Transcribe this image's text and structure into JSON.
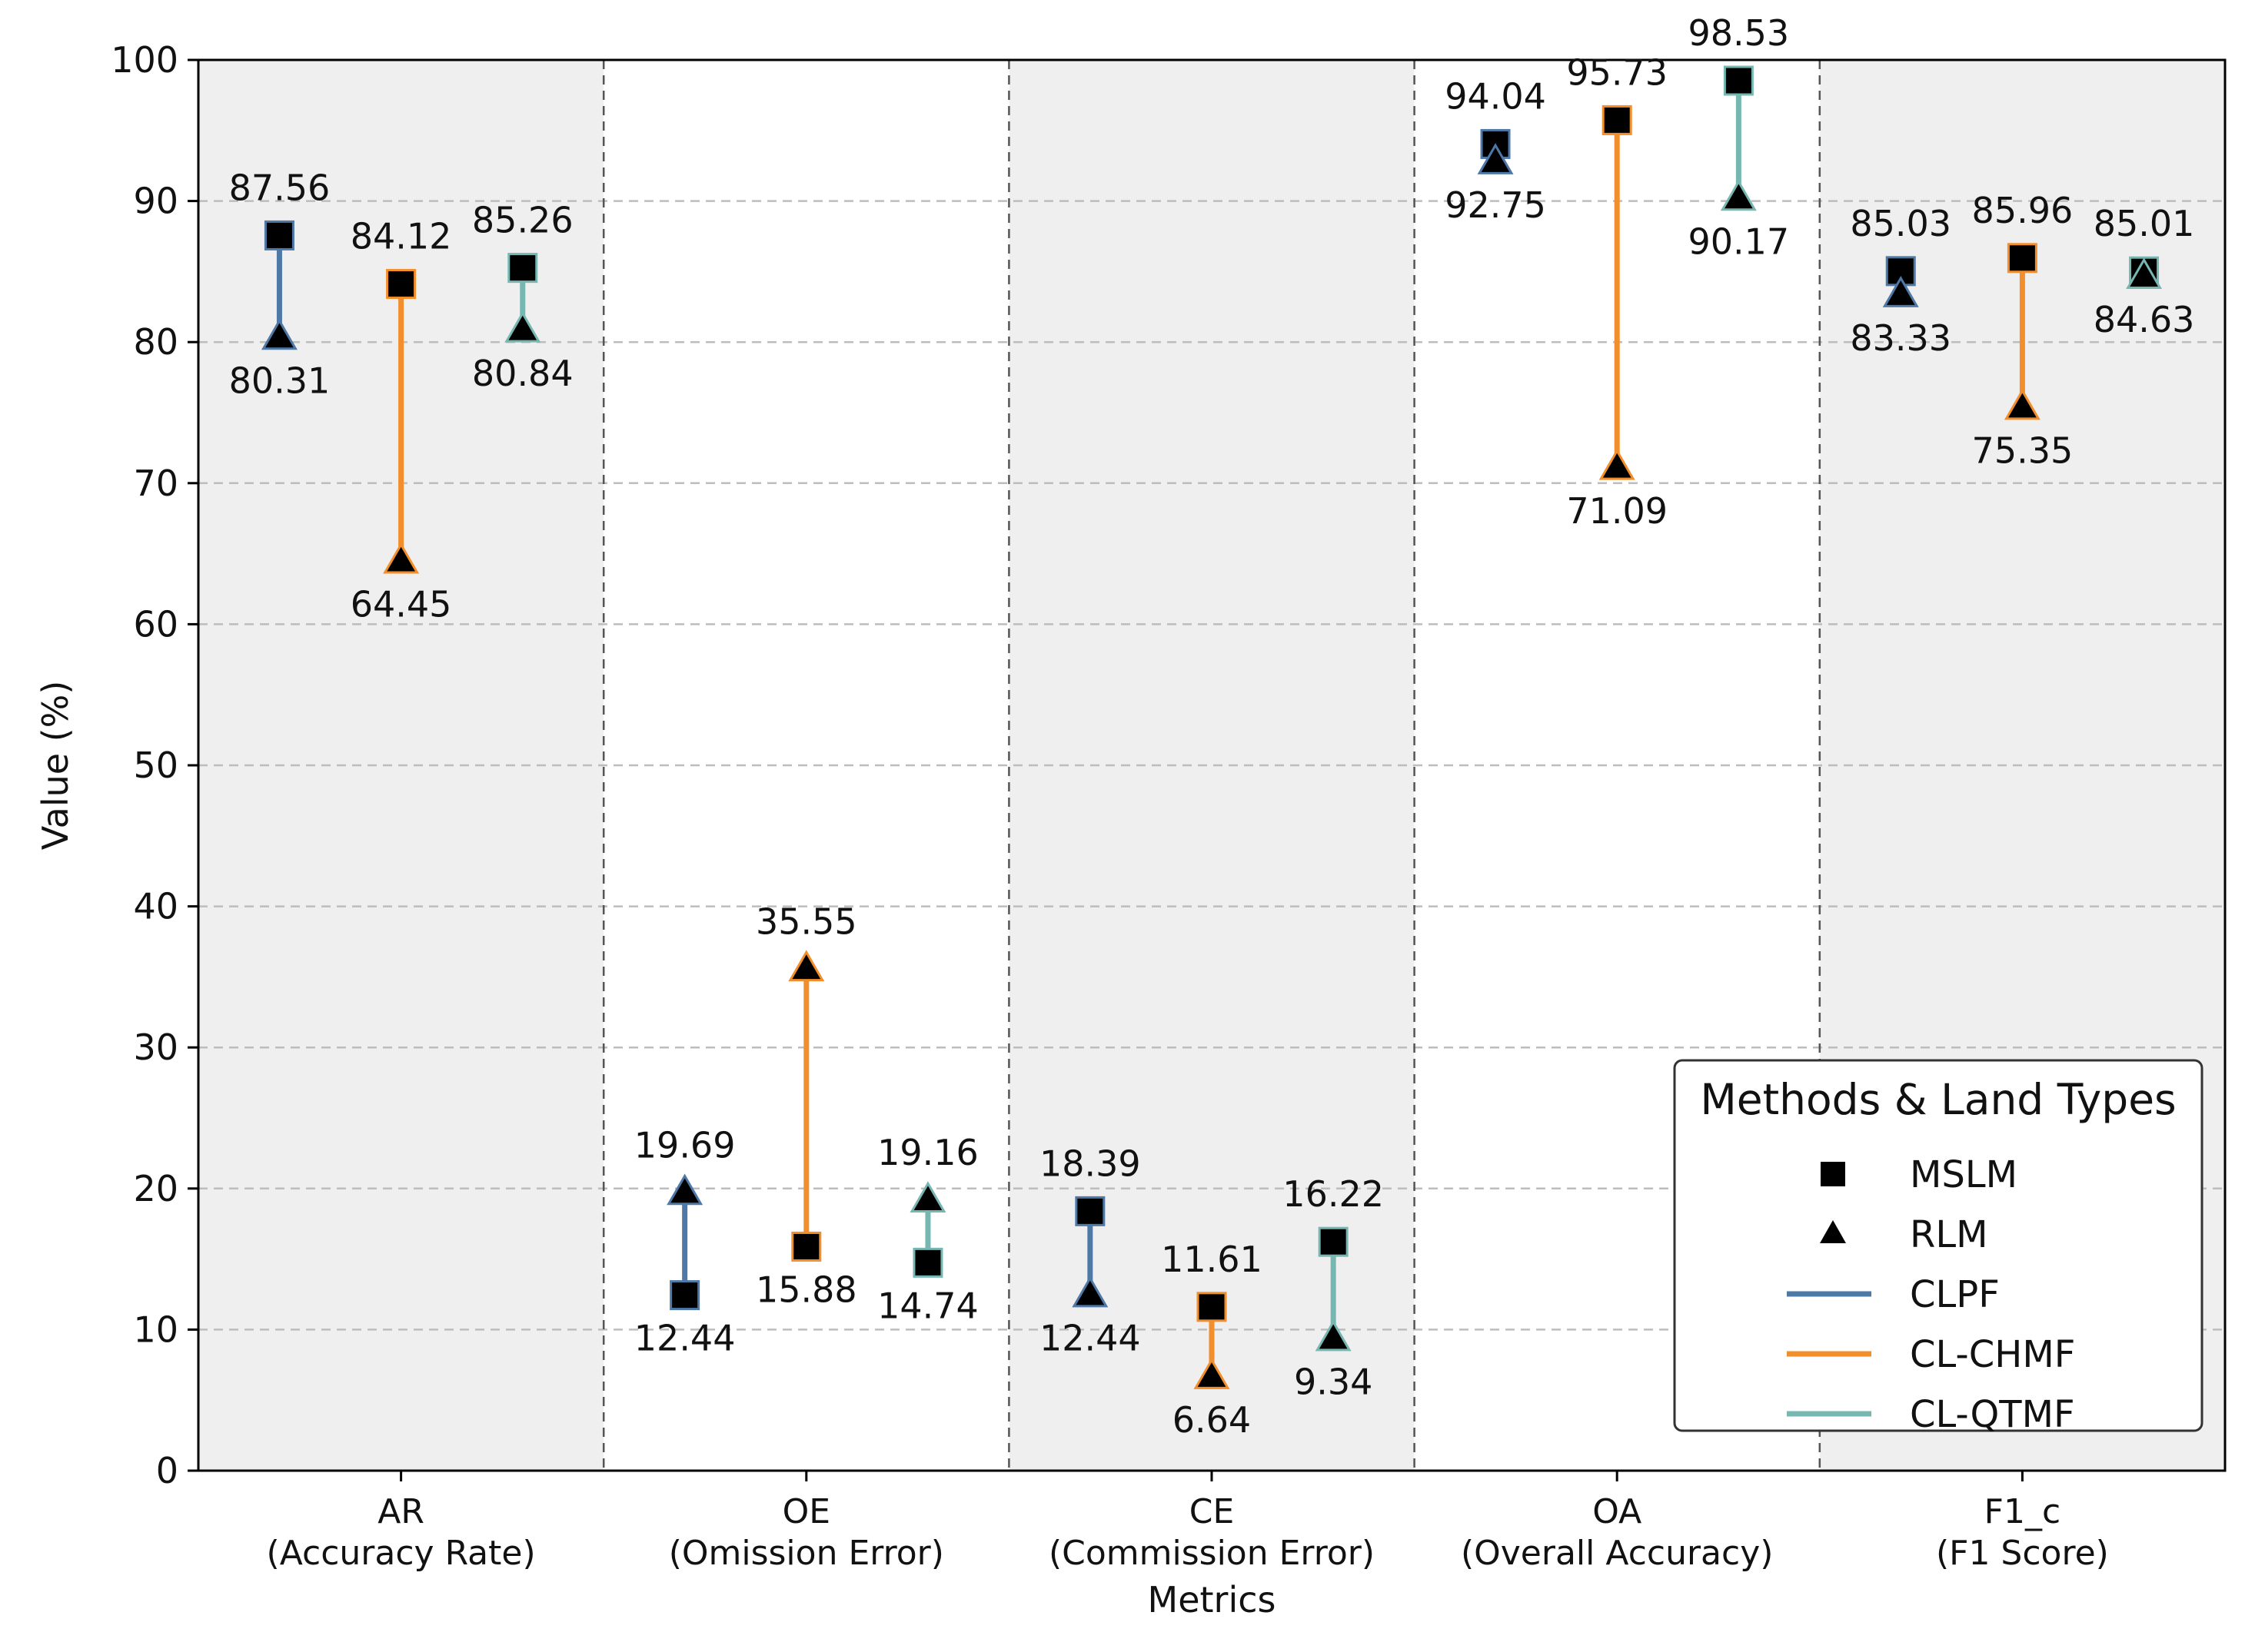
{
  "chart_data": {
    "type": "dumbbell",
    "xlabel": "Metrics",
    "ylabel": "Value (%)",
    "ylim": [
      0,
      100
    ],
    "yticks": [
      0,
      10,
      20,
      30,
      40,
      50,
      60,
      70,
      80,
      90,
      100
    ],
    "grid": true,
    "categories": [
      {
        "code": "AR",
        "desc": "(Accuracy Rate)",
        "shaded": true
      },
      {
        "code": "OE",
        "desc": "(Omission Error)",
        "shaded": false
      },
      {
        "code": "CE",
        "desc": "(Commission Error)",
        "shaded": true
      },
      {
        "code": "OA",
        "desc": "(Overall Accuracy)",
        "shaded": false
      },
      {
        "code": "F1_c",
        "desc": "(F1 Score)",
        "shaded": true
      }
    ],
    "series": [
      {
        "name": "CLPF",
        "color": "#4e79a7",
        "mslm": [
          87.56,
          12.44,
          18.39,
          94.04,
          85.03
        ],
        "rlm": [
          80.31,
          19.69,
          12.44,
          92.75,
          83.33
        ],
        "mslm_labels": [
          "87.56",
          "12.44",
          "18.39",
          "94.04",
          "85.03"
        ],
        "rlm_labels": [
          "80.31",
          "19.69",
          "12.44",
          "92.75",
          "83.33"
        ]
      },
      {
        "name": "CL-CHMF",
        "color": "#f28e2b",
        "mslm": [
          84.12,
          15.88,
          11.61,
          95.73,
          85.96
        ],
        "rlm": [
          64.45,
          35.55,
          6.64,
          71.09,
          75.35
        ],
        "mslm_labels": [
          "84.12",
          "15.88",
          "11.61",
          "95.73",
          "85.96"
        ],
        "rlm_labels": [
          "64.45",
          "35.55",
          "6.64",
          "71.09",
          "75.35"
        ]
      },
      {
        "name": "CL-QTMF",
        "color": "#76b7b2",
        "mslm": [
          85.26,
          14.74,
          16.22,
          98.53,
          85.01
        ],
        "rlm": [
          80.84,
          19.16,
          9.34,
          90.17,
          84.63
        ],
        "mslm_labels": [
          "85.26",
          "14.74",
          "16.22",
          "98.53",
          "85.01"
        ],
        "rlm_labels": [
          "80.84",
          "19.16",
          "9.34",
          "90.17",
          "84.63"
        ]
      }
    ],
    "legend": {
      "title": "Methods & Land Types",
      "position": "lower-right",
      "items": [
        {
          "label": "MSLM",
          "kind": "square"
        },
        {
          "label": "RLM",
          "kind": "triangle"
        },
        {
          "label": "CLPF",
          "kind": "line",
          "color": "#4e79a7"
        },
        {
          "label": "CL-CHMF",
          "kind": "line",
          "color": "#f28e2b"
        },
        {
          "label": "CL-QTMF",
          "kind": "line",
          "color": "#76b7b2"
        }
      ]
    }
  }
}
